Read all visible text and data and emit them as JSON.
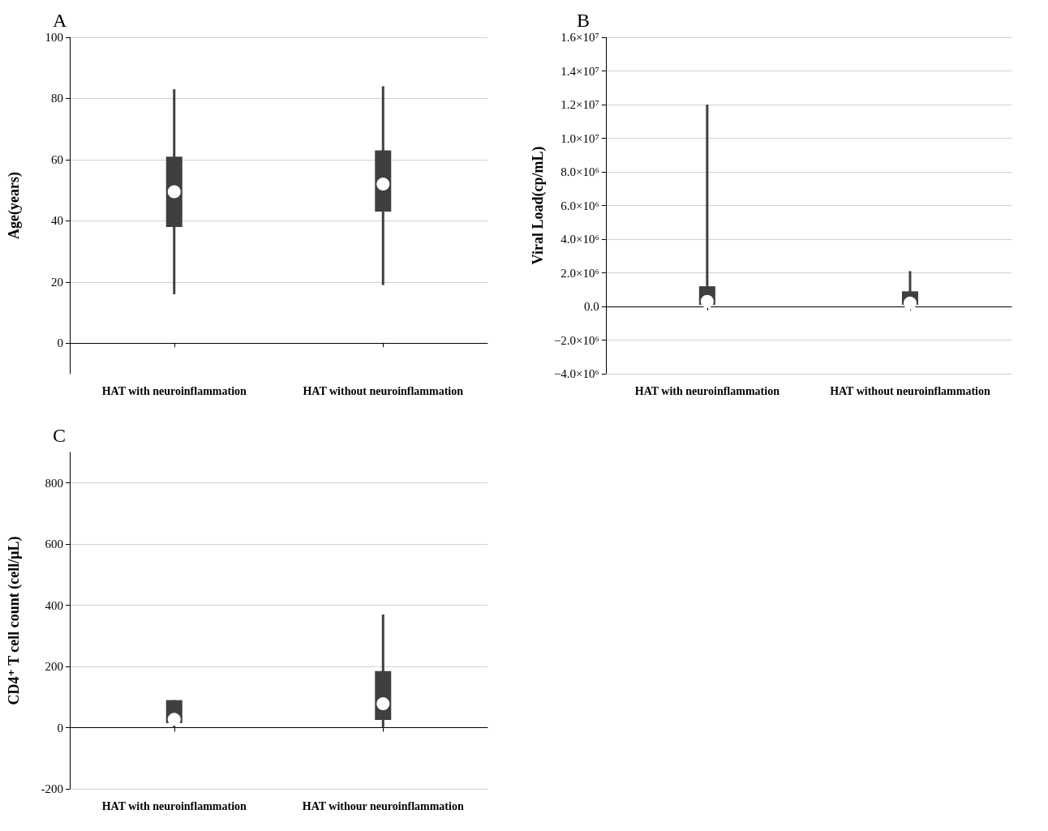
{
  "chart_data": [
    {
      "type": "box",
      "title": "A",
      "ylabel": "Age(years)",
      "categories": [
        "HAT with neuroinflammation",
        "HAT without neuroinflammation"
      ],
      "ylim": [
        -10,
        100
      ],
      "yticks": [
        0,
        20,
        40,
        60,
        80,
        100
      ],
      "grid": "y",
      "color": "#3f3f3f",
      "boxes": [
        {
          "low": 16,
          "q1": 38,
          "median": 49.5,
          "q3": 61,
          "high": 83
        },
        {
          "low": 19,
          "q1": 43,
          "median": 52,
          "q3": 63,
          "high": 84
        }
      ]
    },
    {
      "type": "box",
      "title": "B",
      "ylabel": "Viral Load(cp/mL)",
      "categories": [
        "HAT with neuroinflammation",
        "HAT without neuroinflammation"
      ],
      "ylim": [
        -4000000,
        16000000
      ],
      "grid": "y",
      "color": "#3f3f3f",
      "yticks": [
        {
          "value": -4000000,
          "label": "−4.0×10⁶"
        },
        {
          "value": -2000000,
          "label": "−2.0×10⁶"
        },
        {
          "value": 0,
          "label": "0.0"
        },
        {
          "value": 2000000,
          "label": "2.0×10⁶"
        },
        {
          "value": 4000000,
          "label": "4.0×10⁶"
        },
        {
          "value": 6000000,
          "label": "6.0×10⁶"
        },
        {
          "value": 8000000,
          "label": "8.0×10⁶"
        },
        {
          "value": 10000000,
          "label": "1.0×10⁷"
        },
        {
          "value": 12000000,
          "label": "1.2×10⁷"
        },
        {
          "value": 14000000,
          "label": "1.4×10⁷"
        },
        {
          "value": 16000000,
          "label": "1.6×10⁷"
        }
      ],
      "boxes": [
        {
          "low": 0,
          "q1": 100000,
          "median": 300000,
          "q3": 1200000,
          "high": 12000000
        },
        {
          "low": 0,
          "q1": 100000,
          "median": 200000,
          "q3": 900000,
          "high": 2100000
        }
      ]
    },
    {
      "type": "box",
      "title": "C",
      "ylabel": "CD4⁺ T cell count (cell/μL)",
      "categories": [
        "HAT with neuroinflammation",
        "HAT withour neuroinflammation"
      ],
      "ylim": [
        -200,
        900
      ],
      "yticks": [
        -200,
        0,
        200,
        400,
        600,
        800
      ],
      "grid": "y",
      "color": "#3f3f3f",
      "boxes": [
        {
          "low": 0,
          "q1": 15,
          "median": 27,
          "q3": 90,
          "high": 90
        },
        {
          "low": 0,
          "q1": 25,
          "median": 78,
          "q3": 185,
          "high": 370
        }
      ]
    }
  ]
}
